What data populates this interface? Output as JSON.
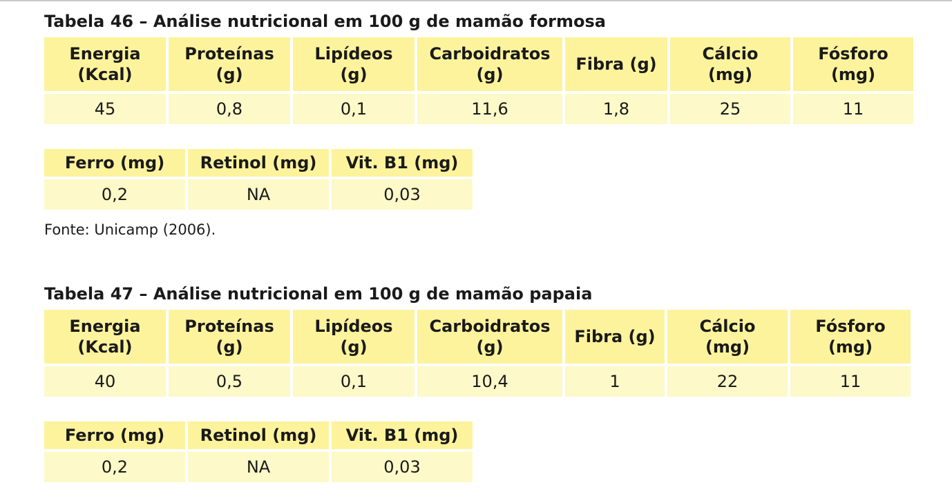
{
  "tables": [
    {
      "caption": "Tabela 46 – Análise nutricional em 100 g de mamão formosa",
      "main_headers": [
        [
          "Energia",
          "(Kcal)"
        ],
        [
          "Proteínas",
          "(g)"
        ],
        [
          "Lipídeos",
          "(g)"
        ],
        [
          "Carboidratos",
          "(g)"
        ],
        [
          "Fibra (g)",
          ""
        ],
        [
          "Cálcio",
          "(mg)"
        ],
        [
          "Fósforo",
          "(mg)"
        ]
      ],
      "main_values": [
        "45",
        "0,8",
        "0,1",
        "11,6",
        "1,8",
        "25",
        "11"
      ],
      "sub_headers": [
        "Ferro (mg)",
        "Retinol (mg)",
        "Vit. B1 (mg)"
      ],
      "sub_values": [
        "0,2",
        "NA",
        "0,03"
      ],
      "source": "Fonte: Unicamp (2006)."
    },
    {
      "caption": "Tabela 47 – Análise nutricional em 100 g de mamão papaia",
      "main_headers": [
        [
          "Energia",
          "(Kcal)"
        ],
        [
          "Proteínas",
          "(g)"
        ],
        [
          "Lipídeos",
          "(g)"
        ],
        [
          "Carboidratos",
          "(g)"
        ],
        [
          "Fibra (g)",
          ""
        ],
        [
          "Cálcio",
          "(mg)"
        ],
        [
          "Fósforo",
          "(mg)"
        ]
      ],
      "main_values": [
        "40",
        "0,5",
        "0,1",
        "10,4",
        "1",
        "22",
        "11"
      ],
      "sub_headers": [
        "Ferro (mg)",
        "Retinol (mg)",
        "Vit. B1 (mg)"
      ],
      "sub_values": [
        "0,2",
        "NA",
        "0,03"
      ]
    }
  ]
}
